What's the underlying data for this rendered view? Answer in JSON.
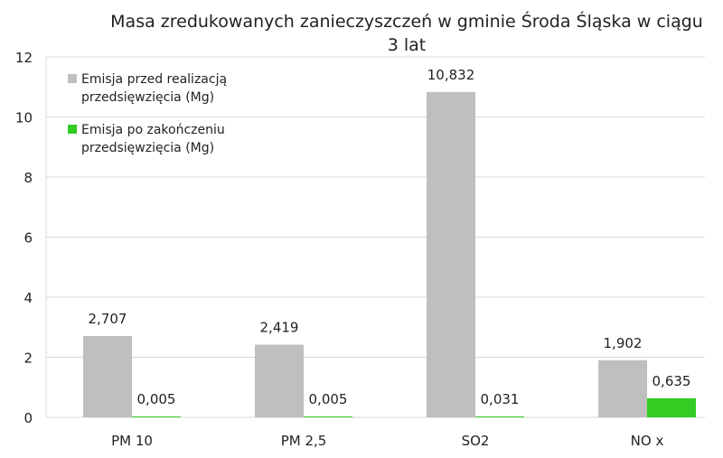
{
  "chart_data": {
    "type": "bar",
    "title_lines": [
      "Masa zredukowanych  zanieczyszczeń w gminie Środa Śląska w ciągu",
      "3 lat"
    ],
    "categories": [
      "PM 10",
      "PM 2,5",
      "SO2",
      "NO x"
    ],
    "series": [
      {
        "name": "Emisja przed realizacją przedsięwzięcia (Mg)",
        "name_lines": [
          "Emisja przed realizacją",
          "przedsięwzięcia (Mg)"
        ],
        "color": "#bfbfbf",
        "values": [
          2.707,
          2.419,
          10.832,
          1.902
        ],
        "labels": [
          "2,707",
          "2,419",
          "10,832",
          "1,902"
        ]
      },
      {
        "name": "Emisja po zakończeniu przedsięwzięcia (Mg)",
        "name_lines": [
          "Emisja po zakończeniu",
          "przedsięwzięcia (Mg)"
        ],
        "color": "#33cc22",
        "values": [
          0.005,
          0.005,
          0.031,
          0.635
        ],
        "labels": [
          "0,005",
          "0,005",
          "0,031",
          "0,635"
        ]
      }
    ],
    "ylim": [
      0,
      12
    ],
    "yticks": [
      0,
      2,
      4,
      6,
      8,
      10,
      12
    ],
    "grid": true,
    "legend_position": "top-left"
  }
}
